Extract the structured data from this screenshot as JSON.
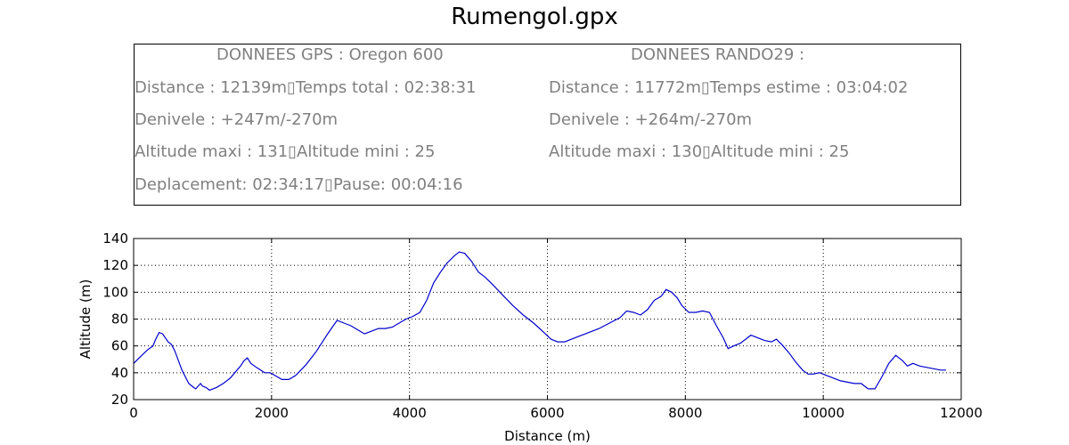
{
  "title": "Rumengol.gpx",
  "info": {
    "gps": {
      "header": "DONNEES GPS :  Oregon 600",
      "lines": [
        "Distance : 12139m▯Temps total : 02:38:31",
        "Denivele : +247m/-270m",
        "Altitude maxi : 131▯Altitude mini : 25",
        "Deplacement: 02:34:17▯Pause: 00:04:16"
      ]
    },
    "rando": {
      "header": "DONNEES RANDO29  :",
      "lines": [
        "Distance : 11772m▯Temps estime : 03:04:02",
        "Denivele : +264m/-270m",
        "Altitude maxi : 130▯Altitude mini : 25"
      ]
    }
  },
  "chart_data": {
    "type": "line",
    "xlabel": "Distance (m)",
    "ylabel": "Altitude (m)",
    "xlim": [
      0,
      12000
    ],
    "ylim": [
      20,
      140
    ],
    "xticks": [
      "0",
      "2000",
      "4000",
      "6000",
      "8000",
      "10000",
      "12000"
    ],
    "yticks": [
      "20",
      "40",
      "60",
      "80",
      "100",
      "120",
      "140"
    ],
    "grid": true,
    "line_color": "#0000cc",
    "series": [
      {
        "x": [
          0,
          100,
          200,
          280,
          320,
          370,
          420,
          500,
          550,
          600,
          700,
          800,
          870,
          900,
          970,
          1000,
          1050,
          1100,
          1200,
          1300,
          1400,
          1500,
          1550,
          1600,
          1650,
          1700,
          1780,
          1900,
          1980,
          2050,
          2150,
          2250,
          2350,
          2500,
          2650,
          2800,
          2880,
          2950,
          3050,
          3150,
          3250,
          3350,
          3450,
          3550,
          3650,
          3750,
          3850,
          3950,
          4050,
          4150,
          4250,
          4350,
          4450,
          4550,
          4650,
          4720,
          4800,
          4900,
          5000,
          5100,
          5200,
          5350,
          5500,
          5650,
          5800,
          5950,
          6050,
          6150,
          6250,
          6350,
          6450,
          6600,
          6750,
          6900,
          7050,
          7150,
          7250,
          7350,
          7450,
          7550,
          7650,
          7720,
          7800,
          7880,
          7950,
          8050,
          8150,
          8250,
          8350,
          8450,
          8550,
          8620,
          8700,
          8800,
          8900,
          8950,
          9050,
          9150,
          9250,
          9320,
          9400,
          9500,
          9600,
          9700,
          9780,
          9850,
          9950,
          10050,
          10150,
          10250,
          10350,
          10450,
          10550,
          10650,
          10750,
          10850,
          10950,
          11050,
          11150,
          11220,
          11300,
          11400,
          11500,
          11600,
          11700,
          11780
        ],
        "y": [
          47,
          52,
          57,
          60,
          65,
          70,
          69,
          63,
          61,
          56,
          42,
          32,
          29,
          28,
          32,
          30,
          29,
          27,
          29,
          32,
          36,
          42,
          45,
          49,
          51,
          47,
          44,
          40,
          40,
          38,
          35,
          35,
          38,
          46,
          56,
          68,
          74,
          79,
          77,
          75,
          72,
          69,
          71,
          73,
          73,
          74,
          77,
          80,
          82,
          85,
          94,
          107,
          115,
          122,
          127,
          130,
          129,
          123,
          115,
          111,
          106,
          98,
          90,
          83,
          77,
          70,
          65,
          63,
          63,
          65,
          67,
          70,
          73,
          77,
          81,
          86,
          85,
          83,
          87,
          94,
          97,
          102,
          100,
          96,
          90,
          85,
          85,
          86,
          85,
          75,
          66,
          58,
          60,
          62,
          66,
          68,
          66,
          64,
          63,
          65,
          61,
          55,
          48,
          42,
          39,
          39,
          40,
          38,
          36,
          34,
          33,
          32,
          32,
          28,
          28,
          37,
          47,
          53,
          49,
          45,
          47,
          45,
          44,
          43,
          42,
          42
        ]
      }
    ]
  }
}
